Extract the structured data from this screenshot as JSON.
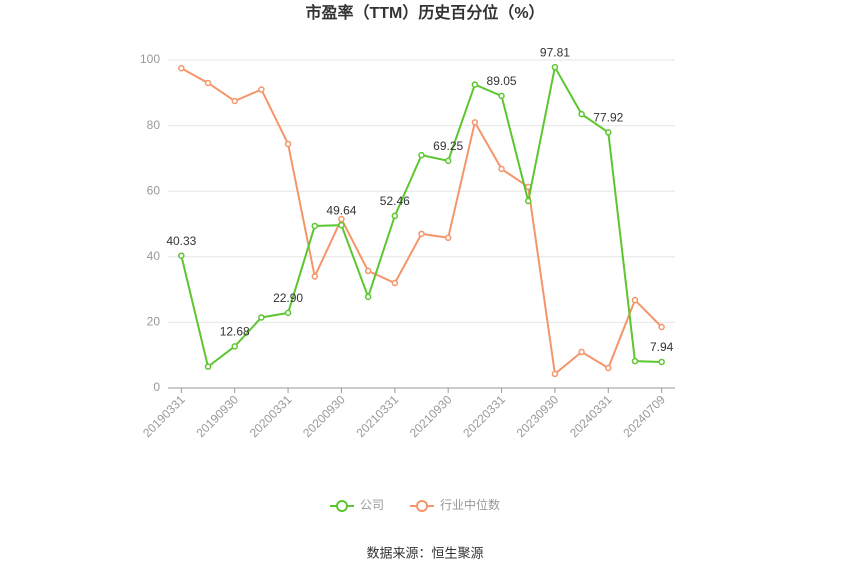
{
  "chart_data": {
    "type": "line",
    "title": "市盈率（TTM）历史百分位（%）",
    "categories": [
      "20190331",
      null,
      "20190930",
      null,
      "20200331",
      null,
      "20200930",
      null,
      "20210331",
      null,
      "20210930",
      null,
      "20220331",
      null,
      "20230930",
      null,
      "20240331",
      null,
      "20240709"
    ],
    "series": [
      {
        "name": "公司",
        "color": "#5cc62f",
        "values": [
          40.33,
          6.5,
          12.68,
          21.5,
          22.9,
          49.4,
          49.64,
          27.8,
          52.46,
          71.0,
          69.25,
          92.5,
          89.05,
          57.0,
          97.81,
          83.5,
          77.92,
          8.2,
          7.94
        ],
        "value_labels": [
          "40.33",
          null,
          "12.68",
          null,
          "22.90",
          null,
          "49.64",
          null,
          "52.46",
          null,
          "69.25",
          null,
          "89.05",
          null,
          "97.81",
          null,
          "77.92",
          null,
          "7.94"
        ]
      },
      {
        "name": "行业中位数",
        "color": "#f5956a",
        "values": [
          97.5,
          93.0,
          87.5,
          91.0,
          74.4,
          34.0,
          51.5,
          35.7,
          32.0,
          47.0,
          45.8,
          81.0,
          66.8,
          61.3,
          4.3,
          11.0,
          6.1,
          26.8,
          18.6
        ]
      }
    ],
    "ylim": [
      0,
      100
    ],
    "yticks": [
      0,
      20,
      40,
      60,
      80,
      100
    ],
    "grid": true,
    "legend": "bottom",
    "source": "数据来源：恒生聚源"
  }
}
